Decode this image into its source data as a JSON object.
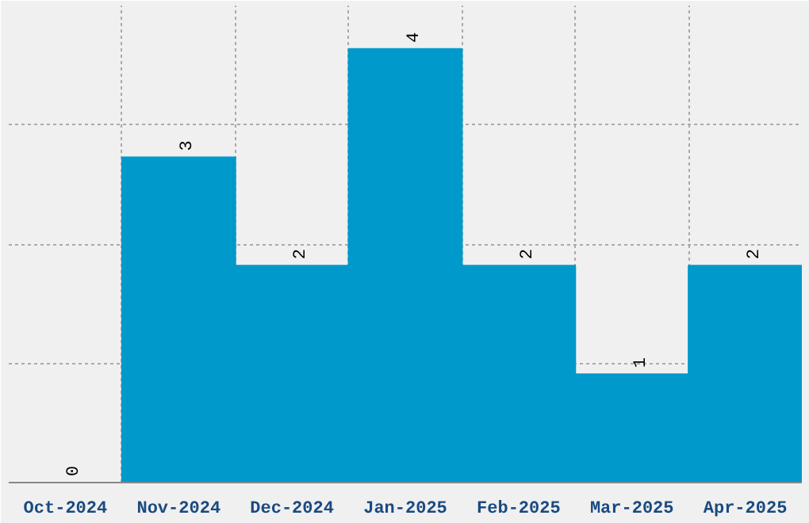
{
  "chart_data": {
    "type": "bar",
    "categories": [
      "Oct-2024",
      "Nov-2024",
      "Dec-2024",
      "Jan-2025",
      "Feb-2025",
      "Mar-2025",
      "Apr-2025"
    ],
    "values": [
      0,
      3,
      2,
      4,
      2,
      1,
      2
    ],
    "color": "#0099cc",
    "ylim": [
      0,
      4.4
    ],
    "yticks": [
      {
        "value": 0,
        "label": null
      },
      {
        "value": 1.1,
        "label": null
      },
      {
        "value": 2.2,
        "label": null
      },
      {
        "value": 3.3,
        "label": null
      },
      {
        "value": 4.4,
        "label": null
      }
    ],
    "tick_labels": "x",
    "grid": true,
    "data_labels": true
  }
}
